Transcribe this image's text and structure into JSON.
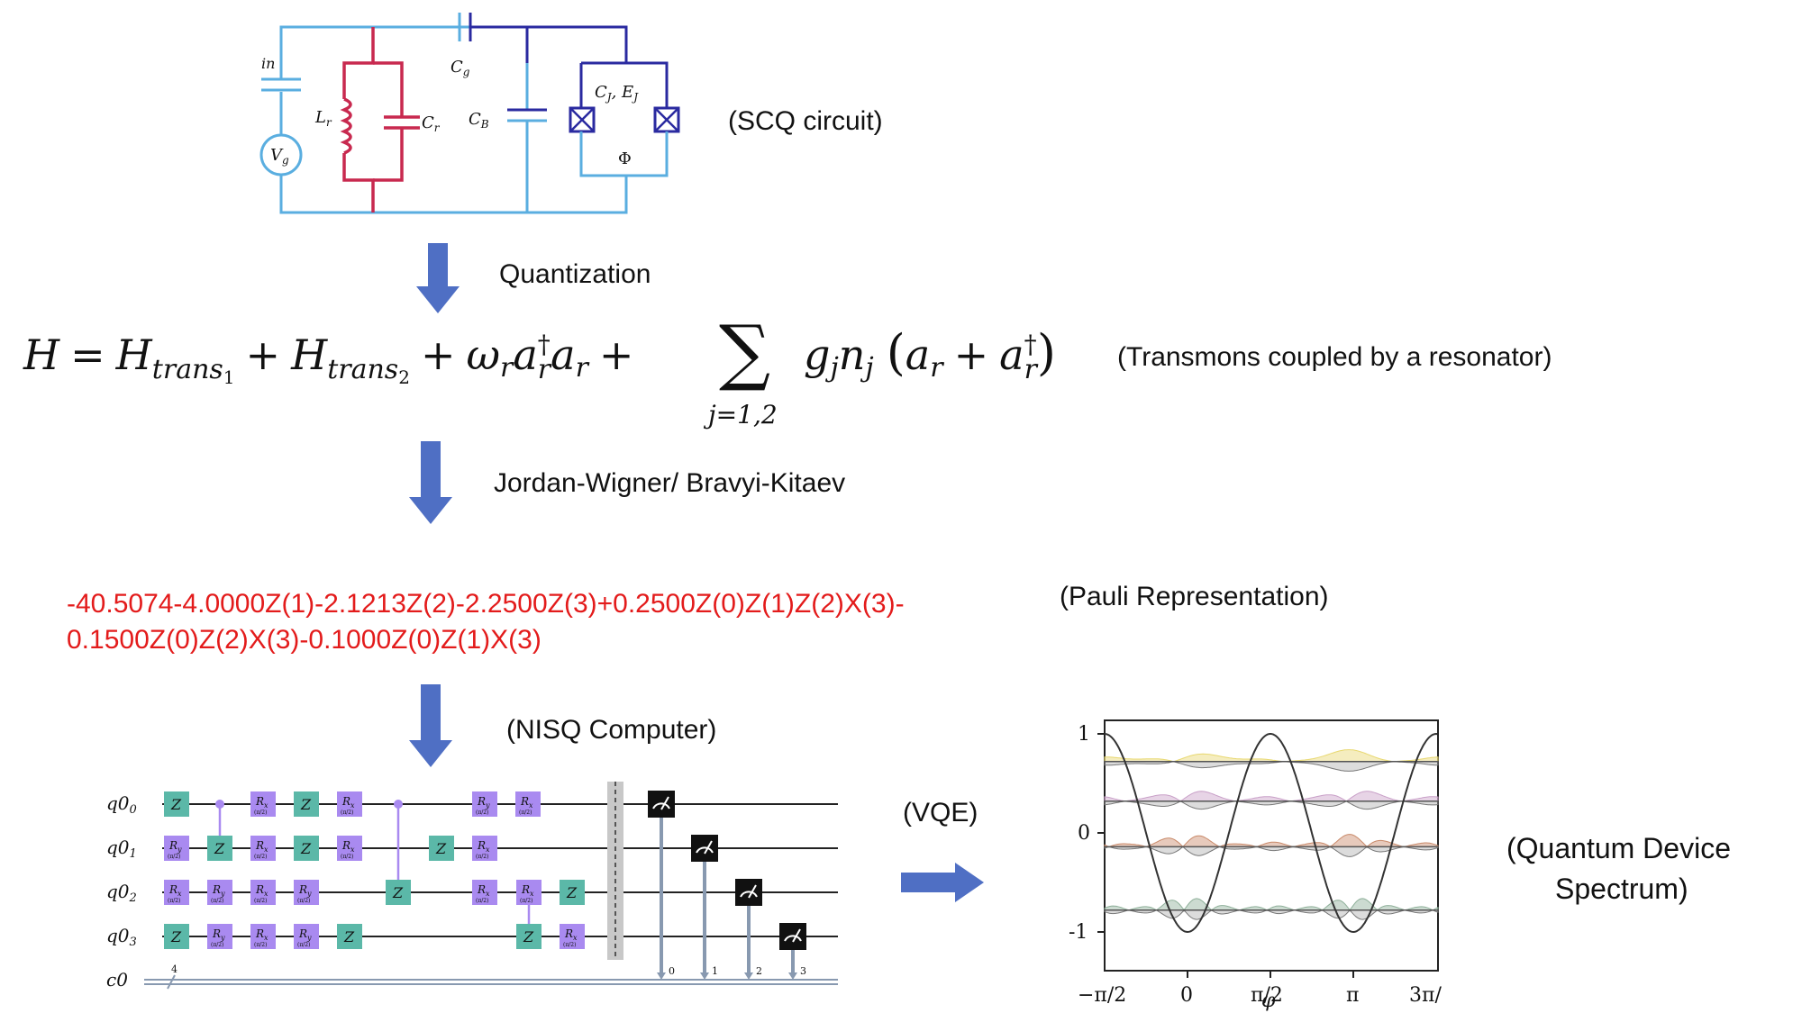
{
  "circuit": {
    "label": "(SCQ circuit)",
    "components": {
      "cin": "in",
      "vg": "V",
      "vg_sub": "g",
      "lr": "L",
      "lr_sub": "r",
      "cr": "C",
      "cr_sub": "r",
      "cg": "C",
      "cg_sub": "g",
      "cb": "C",
      "cb_sub": "B",
      "cj": "C",
      "cj_sub": "J",
      "ej": ", E",
      "ej_sub": "J",
      "phi": "Φ"
    },
    "colors": {
      "light_wire": "#5aaee0",
      "dark_wire": "#2a2aa0",
      "resonator": "#c8294f"
    }
  },
  "steps": {
    "quantization": "Quantization",
    "mapping": "Jordan-Wigner/ Bravyi-Kitaev",
    "nisq": "(NISQ Computer)",
    "vqe": "(VQE)"
  },
  "hamiltonian": {
    "label": "(Transmons coupled by a resonator)",
    "H": "H",
    "eq": "=",
    "plus": "+",
    "trans": "H",
    "trans1_sub": "trans",
    "trans1_idx": "1",
    "trans2_idx": "2",
    "omega": "ω",
    "r": "r",
    "a": "a",
    "dagger": "†",
    "sum": "∑",
    "sum_sub": "j=1,2",
    "g": "g",
    "n": "n",
    "j": "j",
    "lparen": "(",
    "rparen": ")"
  },
  "pauli": {
    "label": "(Pauli Representation)",
    "line1": "-40.5074-4.0000Z(1)-2.1213Z(2)-2.2500Z(3)+0.2500Z(0)Z(1)Z(2)X(3)-",
    "line2": "0.1500Z(0)Z(2)X(3)-0.1000Z(0)Z(1)X(3)",
    "color": "#e31b1b"
  },
  "quantum_circuit": {
    "qubits": [
      "q0",
      "q0",
      "q0",
      "q0"
    ],
    "qubit_idx": [
      "0",
      "1",
      "2",
      "3"
    ],
    "classical": "c0",
    "classical_count": "4",
    "measure_idx": [
      "0",
      "1",
      "2",
      "3"
    ],
    "gate_labels": {
      "z": "Z",
      "rx": "R",
      "rx_sub": "x",
      "ry": "R",
      "ry_sub": "y",
      "param": "(π/2)"
    },
    "colors": {
      "z_gate": "#5bb8a8",
      "r_gate": "#a98af0",
      "measure": "#111111",
      "barrier": "#bbbbbb"
    }
  },
  "spectrum": {
    "label_line1": "(Quantum Device",
    "label_line2": "Spectrum)",
    "y_ticks": [
      "1",
      "0",
      "-1"
    ],
    "x_ticks": [
      "−π/2",
      "0",
      "π/2",
      "π",
      "3π/"
    ],
    "xlabel": "φ",
    "level_colors": [
      "#e8d870",
      "#c9a0c8",
      "#c98a6a",
      "#8fb09a"
    ]
  },
  "arrow_color": "#4f6fc4"
}
